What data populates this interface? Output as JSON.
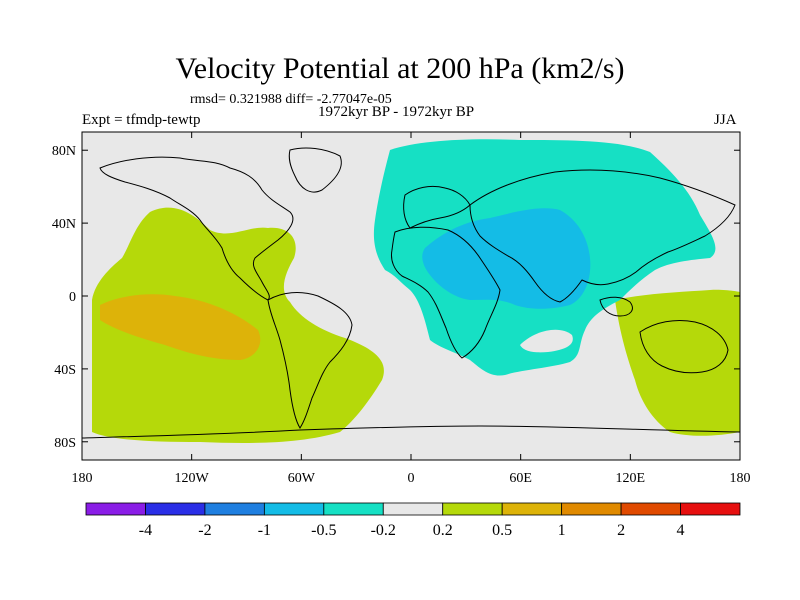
{
  "title": "Velocity Potential at 200 hPa (km2/s)",
  "stats": "rmsd= 0.321988 diff= -2.77047e-05",
  "experiment": "Expt = tfmdp-tewtp",
  "period": "1972kyr BP - 1972kyr BP",
  "season": "JJA",
  "map": {
    "projection": "cylindrical equidistant",
    "lon_range": [
      -180,
      180
    ],
    "lat_range": [
      -90,
      90
    ],
    "lat_ticks": [
      {
        "value": 80,
        "label": "80N"
      },
      {
        "value": 40,
        "label": "40N"
      },
      {
        "value": 0,
        "label": "0"
      },
      {
        "value": -40,
        "label": "40S"
      },
      {
        "value": -80,
        "label": "80S"
      }
    ],
    "lon_ticks": [
      {
        "value": -180,
        "label": "180"
      },
      {
        "value": -120,
        "label": "120W"
      },
      {
        "value": -60,
        "label": "60W"
      },
      {
        "value": 0,
        "label": "0"
      },
      {
        "value": 60,
        "label": "60E"
      },
      {
        "value": 120,
        "label": "120E"
      },
      {
        "value": 180,
        "label": "180"
      }
    ]
  },
  "colorbar": {
    "colors": [
      "#8a1de6",
      "#2a2ee6",
      "#1f7fe0",
      "#14bce6",
      "#16e0c4",
      "#e8e8e8",
      "#b5d90a",
      "#ddb309",
      "#e08a00",
      "#e04a00",
      "#e60f0f"
    ],
    "labels": [
      "-4",
      "-2",
      "-1",
      "-0.5",
      "-0.2",
      "0.2",
      "0.5",
      "1",
      "2",
      "4"
    ]
  },
  "colors": {
    "background": "#e8e8e8",
    "neg_weak": "#16e0c4",
    "neg_mid": "#14bce6",
    "pos_weak": "#b5d90a",
    "pos_mid": "#ddb309",
    "coast": "#000000"
  }
}
